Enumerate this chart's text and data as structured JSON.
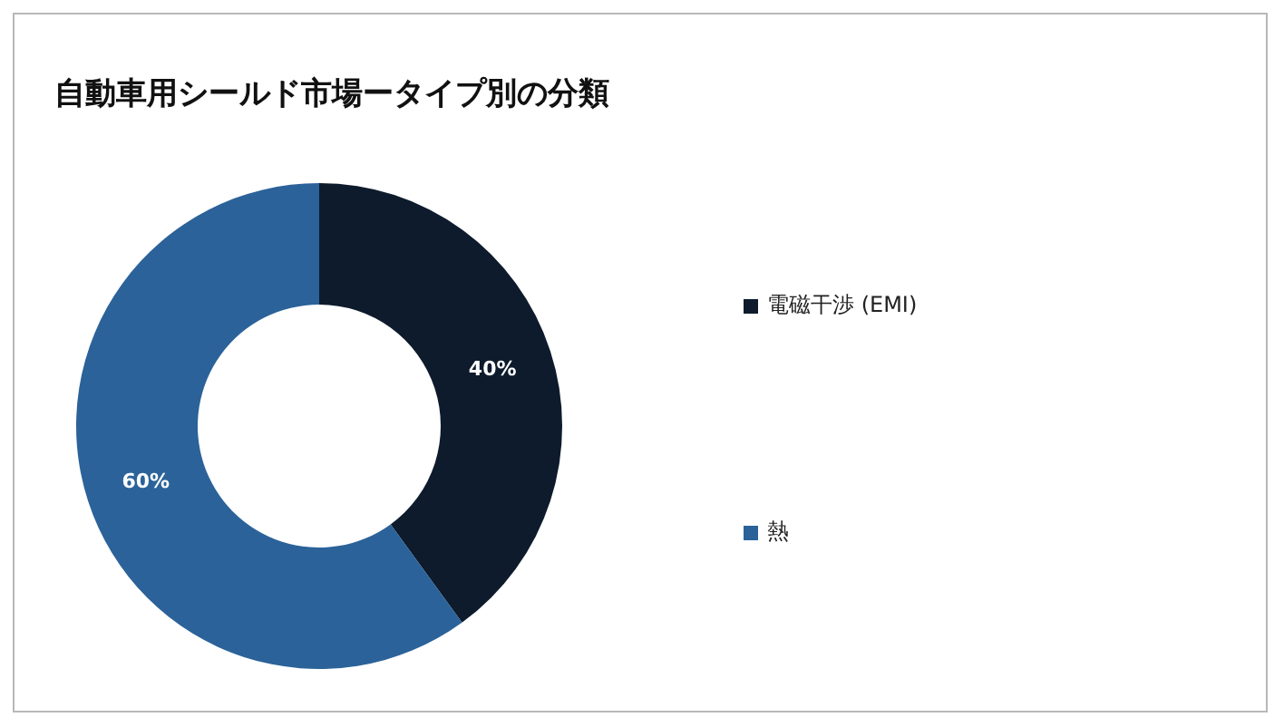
{
  "chart_data": {
    "type": "donut",
    "title": "自動車用シールド市場ータイプ別の分類",
    "categories": [
      "電磁干渉 (EMI)",
      "熱"
    ],
    "values": [
      40,
      60
    ],
    "colors": [
      "#0d1b2c",
      "#2b6299"
    ],
    "value_labels": [
      "40%",
      "60%"
    ],
    "legend": "right"
  }
}
